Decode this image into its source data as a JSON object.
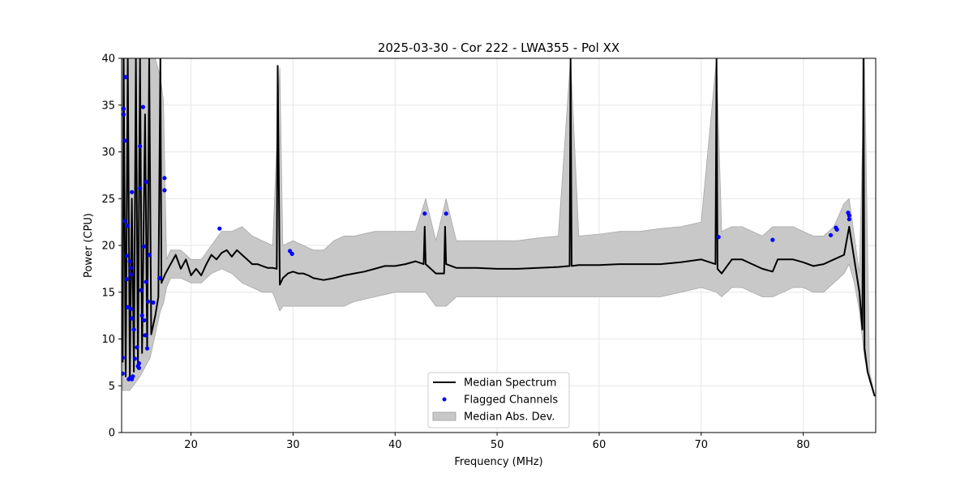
{
  "chart_data": {
    "type": "line",
    "title": "2025-03-30 - Cor 222 - LWA355 - Pol XX",
    "xlabel": "Frequency (MHz)",
    "ylabel": "Power (CPU)",
    "xlim": [
      13.2,
      87.1
    ],
    "ylim": [
      0,
      40
    ],
    "xticks": [
      20,
      30,
      40,
      50,
      60,
      70,
      80
    ],
    "yticks": [
      0,
      5,
      10,
      15,
      20,
      25,
      30,
      35,
      40
    ],
    "grid": true,
    "legend_position": "bottom-center",
    "series": [
      {
        "name": "Median Spectrum",
        "kind": "line",
        "color": "#000000",
        "points": [
          [
            13.3,
            7.5
          ],
          [
            13.4,
            40.0
          ],
          [
            13.6,
            6.0
          ],
          [
            13.8,
            40.0
          ],
          [
            14.0,
            5.8
          ],
          [
            14.2,
            25.0
          ],
          [
            14.4,
            6.5
          ],
          [
            14.6,
            40.0
          ],
          [
            14.8,
            7.0
          ],
          [
            15.0,
            40.0
          ],
          [
            15.2,
            8.5
          ],
          [
            15.5,
            34.0
          ],
          [
            15.7,
            9.0
          ],
          [
            15.9,
            40.0
          ],
          [
            16.1,
            10.5
          ],
          [
            16.5,
            12.5
          ],
          [
            16.8,
            14.5
          ],
          [
            17.0,
            40.0
          ],
          [
            17.1,
            16.0
          ],
          [
            17.5,
            17.0
          ],
          [
            18.0,
            18.0
          ],
          [
            18.5,
            19.0
          ],
          [
            19.0,
            17.5
          ],
          [
            19.5,
            18.5
          ],
          [
            20.0,
            16.8
          ],
          [
            20.5,
            17.5
          ],
          [
            21.0,
            16.8
          ],
          [
            21.5,
            18.0
          ],
          [
            22.0,
            19.0
          ],
          [
            22.5,
            18.5
          ],
          [
            23.0,
            19.2
          ],
          [
            23.5,
            19.5
          ],
          [
            24.0,
            18.8
          ],
          [
            24.5,
            19.5
          ],
          [
            25.0,
            19.0
          ],
          [
            25.5,
            18.5
          ],
          [
            26.0,
            18.0
          ],
          [
            26.5,
            18.0
          ],
          [
            27.0,
            17.8
          ],
          [
            27.5,
            17.6
          ],
          [
            28.0,
            17.6
          ],
          [
            28.4,
            17.5
          ],
          [
            28.5,
            39.2
          ],
          [
            28.7,
            15.8
          ],
          [
            29.0,
            16.5
          ],
          [
            29.5,
            17.0
          ],
          [
            30.0,
            17.2
          ],
          [
            30.5,
            17.0
          ],
          [
            31.0,
            17.0
          ],
          [
            31.5,
            16.8
          ],
          [
            32.0,
            16.5
          ],
          [
            33.0,
            16.3
          ],
          [
            34.0,
            16.5
          ],
          [
            35.0,
            16.8
          ],
          [
            36.0,
            17.0
          ],
          [
            37.0,
            17.2
          ],
          [
            38.0,
            17.5
          ],
          [
            39.0,
            17.8
          ],
          [
            40.0,
            17.8
          ],
          [
            41.0,
            18.0
          ],
          [
            42.0,
            18.3
          ],
          [
            42.8,
            18.0
          ],
          [
            42.9,
            22.0
          ],
          [
            43.0,
            18.0
          ],
          [
            44.0,
            17.0
          ],
          [
            44.8,
            17.0
          ],
          [
            44.9,
            22.0
          ],
          [
            45.0,
            18.0
          ],
          [
            46.0,
            17.6
          ],
          [
            48.0,
            17.6
          ],
          [
            50.0,
            17.5
          ],
          [
            52.0,
            17.5
          ],
          [
            54.0,
            17.6
          ],
          [
            56.0,
            17.7
          ],
          [
            57.1,
            17.8
          ],
          [
            57.2,
            40.0
          ],
          [
            57.3,
            17.8
          ],
          [
            58.0,
            17.9
          ],
          [
            60.0,
            17.9
          ],
          [
            62.0,
            18.0
          ],
          [
            64.0,
            18.0
          ],
          [
            66.0,
            18.0
          ],
          [
            68.0,
            18.2
          ],
          [
            70.0,
            18.5
          ],
          [
            71.4,
            18.0
          ],
          [
            71.5,
            40.0
          ],
          [
            71.6,
            17.5
          ],
          [
            72.0,
            17.0
          ],
          [
            73.0,
            18.5
          ],
          [
            74.0,
            18.5
          ],
          [
            75.0,
            18.0
          ],
          [
            76.0,
            17.5
          ],
          [
            77.0,
            17.2
          ],
          [
            77.5,
            18.5
          ],
          [
            78.0,
            18.5
          ],
          [
            79.0,
            18.5
          ],
          [
            80.0,
            18.2
          ],
          [
            81.0,
            17.8
          ],
          [
            82.0,
            18.0
          ],
          [
            83.0,
            18.5
          ],
          [
            84.0,
            19.0
          ],
          [
            84.5,
            22.0
          ],
          [
            85.0,
            18.5
          ],
          [
            85.5,
            15.0
          ],
          [
            85.8,
            11.0
          ],
          [
            85.9,
            40.0
          ],
          [
            86.0,
            9.0
          ],
          [
            86.3,
            6.5
          ],
          [
            86.7,
            5.0
          ],
          [
            87.0,
            3.9
          ]
        ]
      },
      {
        "name": "Flagged Channels",
        "kind": "scatter",
        "color": "#0000ff",
        "points": [
          [
            13.3,
            6.3
          ],
          [
            13.3,
            8.0
          ],
          [
            13.4,
            34.0
          ],
          [
            13.4,
            34.6
          ],
          [
            13.5,
            31.2
          ],
          [
            13.5,
            22.6
          ],
          [
            13.6,
            38.0
          ],
          [
            13.7,
            18.9
          ],
          [
            13.7,
            16.4
          ],
          [
            13.8,
            22.1
          ],
          [
            13.8,
            13.4
          ],
          [
            13.9,
            5.7
          ],
          [
            14.0,
            5.8
          ],
          [
            14.0,
            18.3
          ],
          [
            14.1,
            17.6
          ],
          [
            14.1,
            16.9
          ],
          [
            14.1,
            13.2
          ],
          [
            14.2,
            25.7
          ],
          [
            14.2,
            12.2
          ],
          [
            14.2,
            5.7
          ],
          [
            14.3,
            6.0
          ],
          [
            14.4,
            11.0
          ],
          [
            14.5,
            7.9
          ],
          [
            14.7,
            9.1
          ],
          [
            14.8,
            7.1
          ],
          [
            14.9,
            6.9
          ],
          [
            14.9,
            7.4
          ],
          [
            15.0,
            30.6
          ],
          [
            15.0,
            26.1
          ],
          [
            15.1,
            15.2
          ],
          [
            15.2,
            12.5
          ],
          [
            15.3,
            34.8
          ],
          [
            15.4,
            19.9
          ],
          [
            15.4,
            12.0
          ],
          [
            15.5,
            10.4
          ],
          [
            15.6,
            26.8
          ],
          [
            15.6,
            16.1
          ],
          [
            15.7,
            9.0
          ],
          [
            15.8,
            14.0
          ],
          [
            15.9,
            19.0
          ],
          [
            16.3,
            13.9
          ],
          [
            16.9,
            16.5
          ],
          [
            17.4,
            27.2
          ],
          [
            17.4,
            25.9
          ],
          [
            22.8,
            21.8
          ],
          [
            29.7,
            19.4
          ],
          [
            29.9,
            19.1
          ],
          [
            42.9,
            23.4
          ],
          [
            45.0,
            23.4
          ],
          [
            71.7,
            20.9
          ],
          [
            77.0,
            20.6
          ],
          [
            82.7,
            21.1
          ],
          [
            83.2,
            21.9
          ],
          [
            83.3,
            21.7
          ],
          [
            84.4,
            23.5
          ],
          [
            84.5,
            23.2
          ],
          [
            84.5,
            22.8
          ]
        ]
      },
      {
        "name": "Median Abs. Dev.",
        "kind": "band",
        "color": "#c8c8c8",
        "points": [
          [
            13.3,
            4.5,
            40.0
          ],
          [
            14.0,
            4.5,
            40.0
          ],
          [
            15.0,
            6.0,
            40.0
          ],
          [
            16.0,
            8.0,
            40.0
          ],
          [
            16.5,
            10.5,
            40.0
          ],
          [
            17.0,
            13.0,
            38.0
          ],
          [
            17.3,
            13.8,
            35.5
          ],
          [
            17.6,
            15.5,
            18.5
          ],
          [
            18.0,
            16.5,
            19.5
          ],
          [
            19.0,
            16.5,
            19.5
          ],
          [
            20.0,
            16.0,
            18.5
          ],
          [
            21.0,
            16.0,
            18.5
          ],
          [
            22.0,
            17.0,
            20.0
          ],
          [
            23.0,
            17.5,
            21.5
          ],
          [
            24.0,
            17.0,
            21.5
          ],
          [
            25.0,
            16.0,
            22.0
          ],
          [
            26.0,
            15.5,
            21.0
          ],
          [
            27.0,
            15.0,
            20.5
          ],
          [
            28.0,
            15.0,
            20.0
          ],
          [
            28.7,
            13.0,
            39.0
          ],
          [
            29.0,
            13.5,
            20.0
          ],
          [
            30.0,
            13.5,
            20.5
          ],
          [
            31.0,
            13.5,
            20.0
          ],
          [
            32.0,
            13.5,
            19.5
          ],
          [
            33.0,
            13.5,
            19.5
          ],
          [
            34.0,
            13.5,
            20.5
          ],
          [
            35.0,
            13.5,
            21.0
          ],
          [
            36.0,
            14.0,
            21.0
          ],
          [
            38.0,
            14.5,
            21.5
          ],
          [
            40.0,
            15.0,
            21.5
          ],
          [
            42.0,
            15.0,
            21.5
          ],
          [
            43.0,
            15.0,
            25.0
          ],
          [
            44.0,
            13.5,
            20.5
          ],
          [
            45.0,
            13.5,
            25.0
          ],
          [
            46.0,
            14.5,
            20.5
          ],
          [
            48.0,
            14.5,
            20.5
          ],
          [
            50.0,
            14.5,
            20.5
          ],
          [
            52.0,
            14.5,
            20.5
          ],
          [
            54.0,
            14.5,
            20.8
          ],
          [
            56.0,
            14.5,
            21.0
          ],
          [
            57.2,
            14.5,
            40.0
          ],
          [
            58.0,
            14.5,
            21.0
          ],
          [
            60.0,
            14.5,
            21.2
          ],
          [
            62.0,
            14.5,
            21.5
          ],
          [
            64.0,
            14.5,
            21.5
          ],
          [
            66.0,
            14.5,
            21.8
          ],
          [
            68.0,
            15.0,
            22.0
          ],
          [
            70.0,
            15.5,
            22.5
          ],
          [
            71.5,
            15.0,
            40.0
          ],
          [
            72.0,
            14.5,
            21.5
          ],
          [
            73.0,
            15.5,
            22.0
          ],
          [
            74.0,
            15.5,
            22.0
          ],
          [
            75.0,
            15.0,
            21.5
          ],
          [
            76.0,
            14.5,
            21.0
          ],
          [
            77.0,
            14.5,
            22.0
          ],
          [
            78.0,
            15.0,
            22.0
          ],
          [
            79.0,
            15.5,
            22.0
          ],
          [
            80.0,
            15.5,
            21.5
          ],
          [
            81.0,
            15.0,
            21.0
          ],
          [
            82.0,
            15.0,
            21.0
          ],
          [
            83.0,
            16.0,
            22.0
          ],
          [
            84.0,
            17.0,
            24.5
          ],
          [
            84.5,
            18.0,
            25.0
          ],
          [
            85.0,
            16.0,
            21.0
          ],
          [
            85.5,
            13.0,
            17.0
          ],
          [
            86.0,
            8.0,
            40.0
          ],
          [
            86.5,
            5.5,
            6.5
          ],
          [
            87.0,
            3.8,
            4.0
          ]
        ]
      }
    ]
  }
}
